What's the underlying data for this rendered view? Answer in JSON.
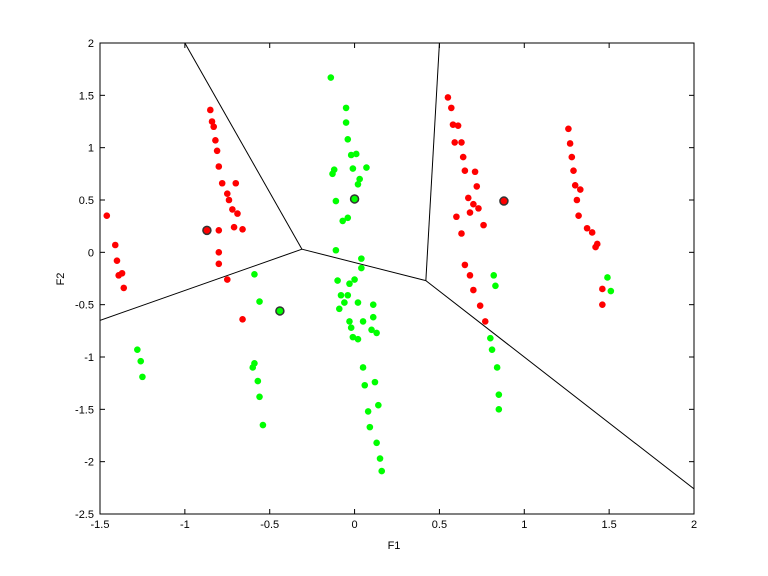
{
  "chart_data": {
    "type": "scatter",
    "title": "",
    "xlabel": "F1",
    "ylabel": "F2",
    "xlim": [
      -1.5,
      2
    ],
    "ylim": [
      -2.5,
      2
    ],
    "x_ticks": [
      -1.5,
      -1,
      -0.5,
      0,
      0.5,
      1,
      1.5,
      2
    ],
    "y_ticks": [
      -2.5,
      -2,
      -1.5,
      -1,
      -0.5,
      0,
      0.5,
      1,
      1.5,
      2
    ],
    "x_tick_labels": [
      "-1.5",
      "-1",
      "-0.5",
      "0",
      "0.5",
      "1",
      "1.5",
      "2"
    ],
    "y_tick_labels": [
      "-2.5",
      "-2",
      "-1.5",
      "-1",
      "-0.5",
      "0",
      "0.5",
      "1",
      "1.5",
      "2"
    ],
    "grid": false,
    "colors": {
      "red": "#ff0000",
      "green": "#00ff00",
      "boundary": "#000000",
      "center_edge": "#333333"
    },
    "series": [
      {
        "color": "red",
        "points": [
          [
            -1.46,
            0.35
          ],
          [
            -1.41,
            0.07
          ],
          [
            -1.4,
            -0.08
          ],
          [
            -1.39,
            -0.22
          ],
          [
            -1.37,
            -0.2
          ],
          [
            -1.36,
            -0.34
          ],
          [
            -0.85,
            1.36
          ],
          [
            -0.84,
            1.25
          ],
          [
            -0.83,
            1.2
          ],
          [
            -0.82,
            1.07
          ],
          [
            -0.81,
            0.97
          ],
          [
            -0.8,
            0.82
          ],
          [
            -0.78,
            0.66
          ],
          [
            -0.75,
            0.56
          ],
          [
            -0.74,
            0.5
          ],
          [
            -0.72,
            0.41
          ],
          [
            -0.71,
            0.24
          ],
          [
            -0.7,
            0.66
          ],
          [
            -0.69,
            0.37
          ],
          [
            -0.66,
            0.22
          ],
          [
            -0.8,
            0.21
          ],
          [
            -0.8,
            0.0
          ],
          [
            -0.8,
            -0.11
          ],
          [
            -0.75,
            -0.26
          ],
          [
            -0.66,
            -0.64
          ],
          [
            0.55,
            1.48
          ],
          [
            0.57,
            1.38
          ],
          [
            0.58,
            1.22
          ],
          [
            0.59,
            1.05
          ],
          [
            0.6,
            0.34
          ],
          [
            0.61,
            1.21
          ],
          [
            0.63,
            1.05
          ],
          [
            0.63,
            0.18
          ],
          [
            0.64,
            0.91
          ],
          [
            0.65,
            0.78
          ],
          [
            0.65,
            -0.12
          ],
          [
            0.67,
            0.52
          ],
          [
            0.68,
            0.38
          ],
          [
            0.68,
            -0.22
          ],
          [
            0.7,
            -0.36
          ],
          [
            0.7,
            0.46
          ],
          [
            0.71,
            0.77
          ],
          [
            0.72,
            0.63
          ],
          [
            0.73,
            0.42
          ],
          [
            0.74,
            -0.51
          ],
          [
            0.76,
            0.26
          ],
          [
            0.77,
            -0.66
          ],
          [
            1.26,
            1.18
          ],
          [
            1.27,
            1.04
          ],
          [
            1.28,
            0.91
          ],
          [
            1.29,
            0.78
          ],
          [
            1.3,
            0.64
          ],
          [
            1.31,
            0.5
          ],
          [
            1.32,
            0.35
          ],
          [
            1.33,
            0.6
          ],
          [
            1.37,
            0.23
          ],
          [
            1.4,
            0.19
          ],
          [
            1.42,
            0.05
          ],
          [
            1.43,
            0.08
          ],
          [
            1.46,
            -0.35
          ],
          [
            1.46,
            -0.5
          ]
        ]
      },
      {
        "color": "green",
        "points": [
          [
            -1.28,
            -0.93
          ],
          [
            -1.26,
            -1.04
          ],
          [
            -1.25,
            -1.19
          ],
          [
            -0.59,
            -0.21
          ],
          [
            -0.56,
            -0.47
          ],
          [
            -0.6,
            -1.1
          ],
          [
            -0.59,
            -1.06
          ],
          [
            -0.57,
            -1.23
          ],
          [
            -0.56,
            -1.38
          ],
          [
            -0.54,
            -1.65
          ],
          [
            -0.14,
            1.67
          ],
          [
            -0.13,
            0.75
          ],
          [
            -0.12,
            0.79
          ],
          [
            -0.11,
            0.49
          ],
          [
            -0.11,
            0.02
          ],
          [
            -0.1,
            -0.27
          ],
          [
            -0.09,
            -0.54
          ],
          [
            -0.08,
            -0.41
          ],
          [
            -0.07,
            0.3
          ],
          [
            -0.06,
            -0.48
          ],
          [
            -0.05,
            1.38
          ],
          [
            -0.05,
            1.24
          ],
          [
            -0.04,
            1.08
          ],
          [
            -0.04,
            0.33
          ],
          [
            -0.04,
            -0.41
          ],
          [
            -0.03,
            -0.3
          ],
          [
            -0.03,
            -0.66
          ],
          [
            -0.02,
            0.93
          ],
          [
            -0.02,
            -0.72
          ],
          [
            -0.01,
            0.8
          ],
          [
            -0.01,
            -0.81
          ],
          [
            0.0,
            -0.26
          ],
          [
            0.01,
            0.94
          ],
          [
            0.02,
            0.65
          ],
          [
            0.02,
            -0.48
          ],
          [
            0.02,
            -0.83
          ],
          [
            0.03,
            0.7
          ],
          [
            0.04,
            -0.06
          ],
          [
            0.04,
            -0.15
          ],
          [
            0.05,
            -0.66
          ],
          [
            0.05,
            -1.1
          ],
          [
            0.06,
            -1.27
          ],
          [
            0.07,
            0.81
          ],
          [
            0.08,
            -1.52
          ],
          [
            0.09,
            -1.67
          ],
          [
            0.1,
            -0.74
          ],
          [
            0.11,
            -0.5
          ],
          [
            0.11,
            -0.62
          ],
          [
            0.12,
            -1.24
          ],
          [
            0.13,
            -0.77
          ],
          [
            0.13,
            -1.82
          ],
          [
            0.14,
            -1.46
          ],
          [
            0.15,
            -1.97
          ],
          [
            0.16,
            -2.09
          ],
          [
            0.8,
            -0.82
          ],
          [
            0.81,
            -0.93
          ],
          [
            0.82,
            -0.22
          ],
          [
            0.83,
            -0.32
          ],
          [
            0.84,
            -1.1
          ],
          [
            0.85,
            -1.36
          ],
          [
            0.85,
            -1.5
          ],
          [
            1.49,
            -0.24
          ],
          [
            1.51,
            -0.37
          ]
        ]
      }
    ],
    "centers": [
      {
        "x": -0.87,
        "y": 0.21,
        "fill": "red"
      },
      {
        "x": -0.44,
        "y": -0.56,
        "fill": "green"
      },
      {
        "x": 0.0,
        "y": 0.51,
        "fill": "green"
      },
      {
        "x": 0.88,
        "y": 0.49,
        "fill": "red"
      }
    ],
    "boundaries": [
      [
        [
          -1.0,
          2.0
        ],
        [
          -0.31,
          0.03
        ]
      ],
      [
        [
          -1.5,
          -0.65
        ],
        [
          -0.31,
          0.03
        ]
      ],
      [
        [
          -0.31,
          0.03
        ],
        [
          0.42,
          -0.27
        ]
      ],
      [
        [
          0.42,
          -0.27
        ],
        [
          0.5,
          2.0
        ]
      ],
      [
        [
          0.42,
          -0.27
        ],
        [
          2.0,
          -2.26
        ]
      ]
    ]
  }
}
